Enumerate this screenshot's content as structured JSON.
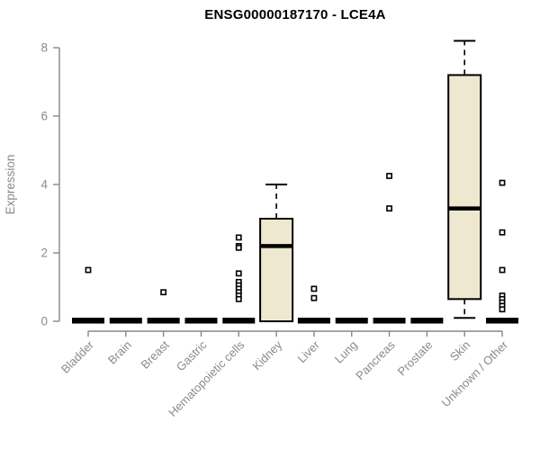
{
  "title": "ENSG00000187170 - LCE4A",
  "chart_data": {
    "type": "boxplot",
    "title": "ENSG00000187170 - LCE4A",
    "xlabel": "",
    "ylabel": "Expression",
    "ylim": [
      0,
      8.3
    ],
    "yticks": [
      0,
      2,
      4,
      6,
      8
    ],
    "grid": false,
    "legend": "none",
    "colors": {
      "box_fill": "#EDE8CF",
      "box_stroke": "#000000",
      "median": "#000000",
      "whisker": "#000000",
      "outlier": "#000000",
      "axis": "#878787",
      "tick_label": "#8A8A8A",
      "title": "#000000",
      "background": "#FFFFFF"
    },
    "categories": [
      "Bladder",
      "Brain",
      "Breast",
      "Gastric",
      "Hematopoietic cells",
      "Kidney",
      "Liver",
      "Lung",
      "Pancreas",
      "Prostate",
      "Skin",
      "Unknown / Other"
    ],
    "boxes": [
      {
        "category": "Bladder",
        "q1": 0,
        "median": 0,
        "q3": 0,
        "whisker_low": 0,
        "whisker_high": 0,
        "outliers": [
          1.5
        ]
      },
      {
        "category": "Brain",
        "q1": 0,
        "median": 0,
        "q3": 0,
        "whisker_low": 0,
        "whisker_high": 0,
        "outliers": []
      },
      {
        "category": "Breast",
        "q1": 0,
        "median": 0,
        "q3": 0,
        "whisker_low": 0,
        "whisker_high": 0,
        "outliers": [
          0.85
        ]
      },
      {
        "category": "Gastric",
        "q1": 0,
        "median": 0,
        "q3": 0,
        "whisker_low": 0,
        "whisker_high": 0,
        "outliers": []
      },
      {
        "category": "Hematopoietic cells",
        "q1": 0,
        "median": 0,
        "q3": 0,
        "whisker_low": 0,
        "whisker_high": 0,
        "outliers": [
          2.45,
          2.2,
          2.15,
          1.4,
          1.15,
          1.05,
          0.95,
          0.85,
          0.75,
          0.65
        ]
      },
      {
        "category": "Kidney",
        "q1": 0,
        "median": 2.2,
        "q3": 3.0,
        "whisker_low": 0,
        "whisker_high": 4.0,
        "outliers": []
      },
      {
        "category": "Liver",
        "q1": 0,
        "median": 0,
        "q3": 0,
        "whisker_low": 0,
        "whisker_high": 0,
        "outliers": [
          0.95,
          0.68
        ]
      },
      {
        "category": "Lung",
        "q1": 0,
        "median": 0,
        "q3": 0,
        "whisker_low": 0,
        "whisker_high": 0,
        "outliers": []
      },
      {
        "category": "Pancreas",
        "q1": 0,
        "median": 0,
        "q3": 0,
        "whisker_low": 0,
        "whisker_high": 0,
        "outliers": [
          4.25,
          3.3
        ]
      },
      {
        "category": "Prostate",
        "q1": 0,
        "median": 0,
        "q3": 0,
        "whisker_low": 0,
        "whisker_high": 0,
        "outliers": []
      },
      {
        "category": "Skin",
        "q1": 0.65,
        "median": 3.3,
        "q3": 7.2,
        "whisker_low": 0.1,
        "whisker_high": 8.2,
        "outliers": []
      },
      {
        "category": "Unknown / Other",
        "q1": 0,
        "median": 0,
        "q3": 0,
        "whisker_low": 0,
        "whisker_high": 0,
        "outliers": [
          4.05,
          2.6,
          1.5,
          0.75,
          0.65,
          0.55,
          0.45,
          0.35
        ]
      }
    ]
  }
}
